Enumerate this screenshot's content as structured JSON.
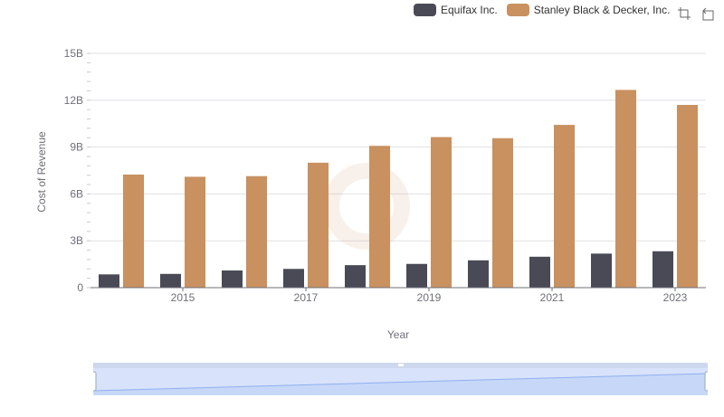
{
  "legend": {
    "items": [
      {
        "label": "Equifax Inc.",
        "color": "#4a4a56"
      },
      {
        "label": "Stanley Black & Decker, Inc.",
        "color": "#c8915f"
      }
    ]
  },
  "toolbar": {
    "zoom_icon": "zoom-select-icon",
    "restore_icon": "restore-icon"
  },
  "chart_data": {
    "type": "bar",
    "xlabel": "Year",
    "ylabel": "Cost of Revenue",
    "ylim": [
      0,
      15000000000
    ],
    "yticks": [
      "0",
      "3B",
      "6B",
      "9B",
      "12B",
      "15B"
    ],
    "categories": [
      "2014",
      "2015",
      "2016",
      "2017",
      "2018",
      "2019",
      "2020",
      "2021",
      "2022",
      "2023"
    ],
    "xtick_labels_shown": [
      "2015",
      "2017",
      "2019",
      "2021",
      "2023"
    ],
    "grid": true,
    "legend_position": "top-right",
    "series": [
      {
        "name": "Equifax Inc.",
        "color": "#4a4a56",
        "values": [
          850000000,
          880000000,
          1100000000,
          1200000000,
          1440000000,
          1520000000,
          1750000000,
          1980000000,
          2180000000,
          2330000000
        ]
      },
      {
        "name": "Stanley Black & Decker, Inc.",
        "color": "#c8915f",
        "values": [
          7240000000,
          7100000000,
          7140000000,
          8000000000,
          9080000000,
          9640000000,
          9570000000,
          10420000000,
          12660000000,
          11700000000
        ]
      }
    ]
  }
}
